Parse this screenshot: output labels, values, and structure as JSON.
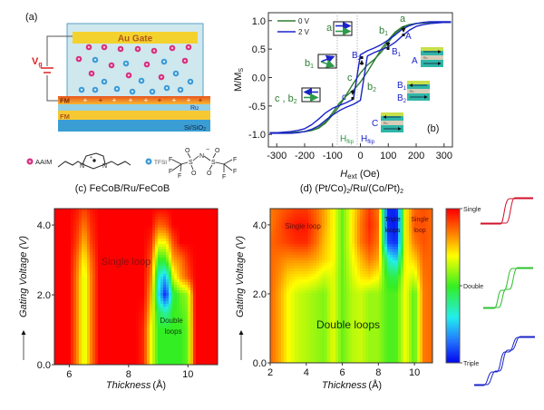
{
  "panel_a": {
    "label": "(a)",
    "gate_label": "Au Gate",
    "voltage_label": "V",
    "voltage_sub": "g",
    "layers": {
      "fm_top": "FM",
      "ru": "Ru",
      "fm_bottom": "FM",
      "substrate": "Si/SiO",
      "substrate_sub": "2"
    },
    "cation_label": "AAIM",
    "anion_label": "TFSI",
    "atoms": {
      "N": "N",
      "S": "S",
      "O": "O",
      "F": "F",
      "plus": "+",
      "minus": "−"
    },
    "colors": {
      "cation": "#d6317f",
      "anion": "#3d9ad6",
      "gate": "#f4d22e",
      "electrolyte": "#cfe8ee"
    }
  },
  "chart_data": [
    {
      "type": "line",
      "panel_label": "(b)",
      "xlabel": "H",
      "xlabel_sub": "ext",
      "xlabel_unit": "(Oe)",
      "ylabel": "M/M",
      "ylabel_sub": "S",
      "xlim": [
        -330,
        330
      ],
      "ylim": [
        -1.22,
        1.14
      ],
      "xticks": [
        -300,
        -200,
        -100,
        0,
        100,
        200,
        300
      ],
      "yticks": [
        -1.0,
        -0.5,
        0.0,
        0.5,
        1.0
      ],
      "legend": {
        "placement": "top-left",
        "entries": [
          "0 V",
          "2 V"
        ]
      },
      "x": [
        -325,
        -300,
        -275,
        -250,
        -225,
        -200,
        -175,
        -150,
        -125,
        -100,
        -75,
        -50,
        -25,
        0,
        25,
        50,
        75,
        100,
        125,
        150,
        175,
        200,
        225,
        250,
        275,
        300,
        325
      ],
      "series": [
        {
          "name": "0 V",
          "branch": "ascending",
          "color": "#2e7d32",
          "values": [
            -0.97,
            -0.97,
            -0.97,
            -0.97,
            -0.96,
            -0.95,
            -0.93,
            -0.88,
            -0.78,
            -0.62,
            -0.45,
            -0.32,
            -0.22,
            -0.08,
            0.1,
            0.3,
            0.5,
            0.66,
            0.8,
            0.89,
            0.93,
            0.95,
            0.96,
            0.97,
            0.97,
            0.97,
            0.97
          ]
        },
        {
          "name": "0 V",
          "branch": "descending",
          "color": "#2e7d32",
          "values": [
            -0.97,
            -0.97,
            -0.97,
            -0.97,
            -0.96,
            -0.95,
            -0.93,
            -0.89,
            -0.8,
            -0.66,
            -0.5,
            -0.3,
            -0.1,
            0.08,
            0.22,
            0.32,
            0.45,
            0.62,
            0.78,
            0.88,
            0.93,
            0.95,
            0.96,
            0.97,
            0.97,
            0.97,
            0.97
          ]
        },
        {
          "name": "2 V",
          "branch": "ascending",
          "color": "#1a23c8",
          "values": [
            -0.98,
            -0.98,
            -0.98,
            -0.98,
            -0.97,
            -0.95,
            -0.91,
            -0.85,
            -0.75,
            -0.66,
            -0.58,
            -0.52,
            -0.47,
            -0.4,
            0.38,
            0.44,
            0.49,
            0.54,
            0.62,
            0.73,
            0.83,
            0.9,
            0.93,
            0.95,
            0.96,
            0.97,
            0.97
          ]
        },
        {
          "name": "2 V",
          "branch": "descending",
          "color": "#1a23c8",
          "values": [
            -0.97,
            -0.97,
            -0.96,
            -0.95,
            -0.93,
            -0.9,
            -0.83,
            -0.73,
            -0.62,
            -0.54,
            -0.49,
            -0.44,
            -0.38,
            0.4,
            0.47,
            0.52,
            0.58,
            0.66,
            0.75,
            0.85,
            0.91,
            0.95,
            0.97,
            0.98,
            0.98,
            0.98,
            0.98
          ]
        }
      ],
      "annotations": {
        "a": "a",
        "b1": "b",
        "b1_sub": "1",
        "b2": "b",
        "b2_sub": "2",
        "c": "c",
        "c_b2": "c , b",
        "A": "A",
        "B1": "B",
        "B1_sub": "1",
        "B2": "B",
        "B2_sub": "2",
        "C": "C",
        "hflip": "H",
        "hflip_sub": "flip",
        "ru": "Ru"
      }
    },
    {
      "type": "heatmap",
      "title": "(c) FeCoB/Ru/FeCoB",
      "xlabel": "Thickness",
      "xlabel_unit": "(Å)",
      "ylabel": "Gating Voltage (V)",
      "xlim": [
        5.5,
        11
      ],
      "ylim": [
        0,
        4.47
      ],
      "xticks": [
        6,
        8,
        10
      ],
      "yticks": [
        "0.0",
        "2.0",
        "4.0"
      ],
      "annotations": {
        "single": "Single loop",
        "double_1": "Double",
        "double_2": "loops"
      },
      "x": [
        5.5,
        5.75,
        6,
        6.25,
        6.5,
        6.75,
        7,
        7.25,
        7.5,
        7.75,
        8,
        8.25,
        8.5,
        8.75,
        9,
        9.25,
        9.5,
        9.75,
        10,
        10.25,
        10.5,
        10.75,
        11
      ],
      "y": [
        0,
        0.5,
        1,
        1.5,
        2,
        2.5,
        3,
        3.5,
        4,
        4.5
      ],
      "z": [
        [
          1,
          1,
          1,
          1.3,
          1.7,
          1.3,
          1,
          1,
          1,
          1,
          1,
          1,
          1.1,
          1.6,
          2,
          2,
          2,
          2,
          1.9,
          1,
          1,
          1,
          1
        ],
        [
          1,
          1,
          1,
          1.3,
          1.7,
          1.3,
          1,
          1,
          1,
          1,
          1,
          1,
          1.1,
          1.6,
          2,
          2,
          2,
          2,
          1.9,
          1,
          1,
          1,
          1
        ],
        [
          1,
          1,
          1,
          1.3,
          1.7,
          1.3,
          1,
          1,
          1,
          1,
          1,
          1,
          1.1,
          1.6,
          2,
          2,
          2,
          2,
          1.9,
          1,
          1,
          1,
          1
        ],
        [
          1,
          1,
          1,
          1.3,
          1.7,
          1.3,
          1,
          1,
          1,
          1,
          1,
          1,
          1.05,
          1.5,
          2.1,
          2.3,
          2,
          1.95,
          1.85,
          1,
          1,
          1,
          1
        ],
        [
          1,
          1,
          1,
          1.3,
          1.7,
          1.3,
          1,
          1,
          1,
          1,
          1,
          1,
          1,
          1.4,
          2.4,
          2.95,
          2.1,
          1.9,
          1.8,
          1,
          1,
          1,
          1
        ],
        [
          1,
          1,
          1,
          1.3,
          1.7,
          1.3,
          1,
          1,
          1,
          1,
          1,
          1,
          1,
          1.3,
          2.3,
          2.6,
          1.7,
          1.4,
          1.2,
          1,
          1,
          1,
          1
        ],
        [
          1,
          1,
          1,
          1.25,
          1.6,
          1.25,
          1,
          1,
          1,
          1,
          1,
          1,
          1,
          1.2,
          2,
          2,
          1.4,
          1.3,
          1.1,
          1,
          1,
          1,
          1
        ],
        [
          1,
          1,
          1,
          1.15,
          1.45,
          1.15,
          1,
          1,
          1,
          1,
          1,
          1,
          1,
          1.1,
          1.6,
          1.6,
          1.2,
          1,
          1,
          1,
          1,
          1,
          1
        ],
        [
          1,
          1,
          1,
          1.1,
          1.3,
          1.1,
          1,
          1,
          1,
          1,
          1,
          1,
          1,
          1,
          1.25,
          1.2,
          1,
          1,
          1,
          1,
          1,
          1,
          1
        ],
        [
          1,
          1,
          1,
          1.05,
          1.15,
          1.05,
          1,
          1,
          1,
          1,
          1,
          1,
          1,
          1,
          1,
          1,
          1,
          1,
          1,
          1,
          1,
          1,
          1
        ]
      ]
    },
    {
      "type": "heatmap",
      "title": "(d) (Pt/Co)",
      "title_sub": "2",
      "title_mid": "/Ru/(Co/Pt)",
      "title_sub2": "2",
      "xlabel": "Thickness",
      "xlabel_unit": "(Å)",
      "ylabel": "Gating Voltage (V)",
      "xlim": [
        2,
        11
      ],
      "ylim": [
        0,
        4.47
      ],
      "xticks": [
        2,
        4,
        6,
        8,
        10
      ],
      "yticks": [
        "0.0",
        "2.0",
        "4.0"
      ],
      "annotations": {
        "single_left": "Single loop",
        "triple_1": "Triple",
        "triple_2": "loops",
        "single_r1": "Single",
        "single_r2": "loop",
        "double": "Double loops"
      },
      "colorbar": {
        "labels": [
          "Single",
          "Double",
          "Triple"
        ],
        "colors": [
          "#ff0000",
          "#ff7a00",
          "#ffff00",
          "#33ee22",
          "#22eeee",
          "#2277ff",
          "#0000ee"
        ]
      },
      "x": [
        2,
        2.5,
        3,
        3.5,
        4,
        4.5,
        5,
        5.5,
        6,
        6.5,
        7,
        7.5,
        8,
        8.5,
        9,
        9.5,
        10,
        10.5,
        11
      ],
      "y": [
        0,
        0.5,
        1,
        1.5,
        2,
        2.5,
        3,
        3.5,
        4,
        4.5
      ],
      "z": [
        [
          1.25,
          1.4,
          1.6,
          1.7,
          1.75,
          1.8,
          1.85,
          1.65,
          1.9,
          1.75,
          1.7,
          1.8,
          1.8,
          1.95,
          1.95,
          1.6,
          1.95,
          1.3,
          1.25
        ],
        [
          1.25,
          1.4,
          1.6,
          1.7,
          1.75,
          1.8,
          1.85,
          1.65,
          1.9,
          1.75,
          1.7,
          1.8,
          1.8,
          1.95,
          1.95,
          1.6,
          1.95,
          1.3,
          1.25
        ],
        [
          1.25,
          1.4,
          1.6,
          1.7,
          1.75,
          1.8,
          1.85,
          1.65,
          1.9,
          1.75,
          1.7,
          1.8,
          1.8,
          1.95,
          1.95,
          1.6,
          1.95,
          1.3,
          1.25
        ],
        [
          1.25,
          1.4,
          1.6,
          1.7,
          1.75,
          1.8,
          1.85,
          1.65,
          1.9,
          1.75,
          1.7,
          1.8,
          1.8,
          1.95,
          1.95,
          1.6,
          1.95,
          1.3,
          1.25
        ],
        [
          1.25,
          1.4,
          1.6,
          1.7,
          1.75,
          1.8,
          1.85,
          1.65,
          1.9,
          1.75,
          1.7,
          1.8,
          1.8,
          1.95,
          1.95,
          1.6,
          1.95,
          1.3,
          1.25
        ],
        [
          1.25,
          1.35,
          1.5,
          1.55,
          1.55,
          1.6,
          1.7,
          1.65,
          1.9,
          1.7,
          1.55,
          1.5,
          1.6,
          2.05,
          2.1,
          1.6,
          1.7,
          1.28,
          1.25
        ],
        [
          1.25,
          1.3,
          1.35,
          1.35,
          1.35,
          1.4,
          1.5,
          1.6,
          1.9,
          1.65,
          1.45,
          1.3,
          1.4,
          2.3,
          2.5,
          1.6,
          1.5,
          1.25,
          1.25
        ],
        [
          1.25,
          1.2,
          1.15,
          1.1,
          1.1,
          1.25,
          1.45,
          1.6,
          1.9,
          1.6,
          1.3,
          1.15,
          1.3,
          2.8,
          2.9,
          1.6,
          1.3,
          1.2,
          1.25
        ],
        [
          1.3,
          1.2,
          1.1,
          1.05,
          1.05,
          1.2,
          1.4,
          1.6,
          1.9,
          1.6,
          1.3,
          1.1,
          1.25,
          2.9,
          2.95,
          1.6,
          1.2,
          1.2,
          1.25
        ],
        [
          1.3,
          1.25,
          1.2,
          1.15,
          1.15,
          1.25,
          1.4,
          1.6,
          1.9,
          1.6,
          1.35,
          1.15,
          1.3,
          2.9,
          2.9,
          1.6,
          1.25,
          1.2,
          1.25
        ]
      ]
    }
  ]
}
